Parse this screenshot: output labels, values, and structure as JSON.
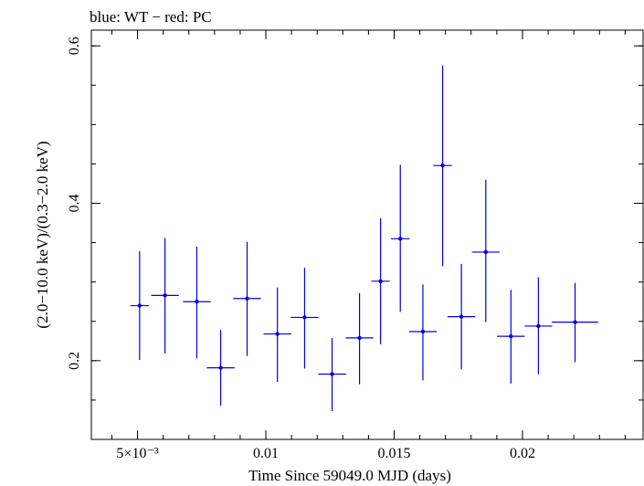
{
  "chart_data": {
    "type": "scatter",
    "title": "blue: WT − red: PC",
    "xlabel": "Time Since 59049.0 MJD (days)",
    "ylabel": "(2.0−10.0 keV)/(0.3−2.0 keV)",
    "xlim": [
      0.0032,
      0.0247
    ],
    "ylim": [
      0.1,
      0.62
    ],
    "x_ticks": [
      {
        "value": 0.005,
        "label": "5×10⁻³"
      },
      {
        "value": 0.01,
        "label": "0.01"
      },
      {
        "value": 0.015,
        "label": "0.015"
      },
      {
        "value": 0.02,
        "label": "0.02"
      }
    ],
    "y_ticks": [
      {
        "value": 0.2,
        "label": "0.2"
      },
      {
        "value": 0.4,
        "label": "0.4"
      },
      {
        "value": 0.6,
        "label": "0.6"
      }
    ],
    "x_minor_step": 0.001,
    "y_minor_step": 0.05,
    "grid": false,
    "color": "#0000e6",
    "series": [
      {
        "points": [
          {
            "x": 0.00508,
            "xerr": 0.00036,
            "y": 0.27,
            "ylo": 0.201,
            "yhi": 0.339
          },
          {
            "x": 0.00607,
            "xerr": 0.00054,
            "y": 0.283,
            "ylo": 0.209,
            "yhi": 0.356
          },
          {
            "x": 0.00731,
            "xerr": 0.00054,
            "y": 0.275,
            "ylo": 0.203,
            "yhi": 0.345
          },
          {
            "x": 0.00824,
            "xerr": 0.00054,
            "y": 0.191,
            "ylo": 0.143,
            "yhi": 0.239
          },
          {
            "x": 0.00927,
            "xerr": 0.00054,
            "y": 0.279,
            "ylo": 0.206,
            "yhi": 0.351
          },
          {
            "x": 0.01045,
            "xerr": 0.00054,
            "y": 0.234,
            "ylo": 0.173,
            "yhi": 0.293
          },
          {
            "x": 0.01151,
            "xerr": 0.00054,
            "y": 0.255,
            "ylo": 0.19,
            "yhi": 0.318
          },
          {
            "x": 0.01258,
            "xerr": 0.00054,
            "y": 0.183,
            "ylo": 0.136,
            "yhi": 0.229
          },
          {
            "x": 0.01365,
            "xerr": 0.00054,
            "y": 0.229,
            "ylo": 0.17,
            "yhi": 0.286
          },
          {
            "x": 0.01447,
            "xerr": 0.00036,
            "y": 0.301,
            "ylo": 0.221,
            "yhi": 0.381
          },
          {
            "x": 0.01524,
            "xerr": 0.00036,
            "y": 0.355,
            "ylo": 0.262,
            "yhi": 0.449
          },
          {
            "x": 0.01612,
            "xerr": 0.00054,
            "y": 0.237,
            "ylo": 0.175,
            "yhi": 0.297
          },
          {
            "x": 0.01689,
            "xerr": 0.00036,
            "y": 0.448,
            "ylo": 0.32,
            "yhi": 0.575
          },
          {
            "x": 0.01762,
            "xerr": 0.00054,
            "y": 0.256,
            "ylo": 0.189,
            "yhi": 0.323
          },
          {
            "x": 0.01857,
            "xerr": 0.00054,
            "y": 0.338,
            "ylo": 0.249,
            "yhi": 0.43
          },
          {
            "x": 0.01955,
            "xerr": 0.00054,
            "y": 0.231,
            "ylo": 0.171,
            "yhi": 0.29
          },
          {
            "x": 0.02062,
            "xerr": 0.00054,
            "y": 0.244,
            "ylo": 0.183,
            "yhi": 0.306
          },
          {
            "x": 0.02205,
            "xerr": 0.0009,
            "y": 0.249,
            "ylo": 0.198,
            "yhi": 0.299
          }
        ]
      }
    ]
  }
}
